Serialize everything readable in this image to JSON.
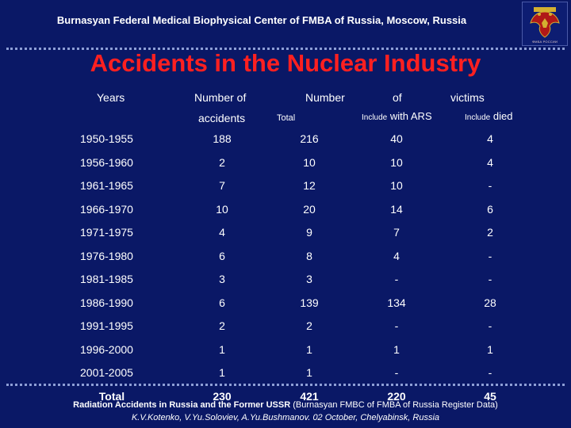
{
  "header": {
    "institution": "Burnasyan Federal Medical Biophysical Center of FMBA of Russia, Moscow, Russia",
    "emblem_caption": "ФМБА РОССИИ",
    "emblem_icon": "double-headed-eagle-emblem"
  },
  "title": "Accidents in the Nuclear Industry",
  "colors": {
    "background": "#0a1866",
    "title": "#ff2020",
    "dots": "#8e9fd6"
  },
  "table": {
    "headers": {
      "years": "Years",
      "number_of": "Number of",
      "accidents": "accidents",
      "number": "Number",
      "of": "of",
      "victims": "victims",
      "total": "Total",
      "include_prefix": "Include",
      "with_ars": "with ARS",
      "died": "died"
    },
    "rows": [
      [
        "1950-1955",
        "188",
        "216",
        "40",
        "4"
      ],
      [
        "1956-1960",
        "2",
        "10",
        "10",
        "4"
      ],
      [
        "1961-1965",
        "7",
        "12",
        "10",
        "-"
      ],
      [
        "1966-1970",
        "10",
        "20",
        "14",
        "6"
      ],
      [
        "1971-1975",
        "4",
        "9",
        "7",
        "2"
      ],
      [
        "1976-1980",
        "6",
        "8",
        "4",
        "-"
      ],
      [
        "1981-1985",
        "3",
        "3",
        "-",
        "-"
      ],
      [
        "1986-1990",
        "6",
        "139",
        "134",
        "28"
      ],
      [
        "1991-1995",
        "2",
        "2",
        "-",
        "-"
      ],
      [
        "1996-2000",
        "1",
        "1",
        "1",
        "1"
      ],
      [
        "2001-2005",
        "1",
        "1",
        "-",
        "-"
      ]
    ],
    "total_row": [
      "Total",
      "230",
      "421",
      "220",
      "45"
    ]
  },
  "footer": {
    "source_bold": "Radiation Accidents in Russia and the Former USSR",
    "source_rest": " (Burnasyan FMBC of FMBA of Russia Register Data)",
    "authors": "K.V.Kotenko, V.Yu.Soloviev, A.Yu.Bushmanov. 02 October, Chelyabinsk, Russia"
  }
}
